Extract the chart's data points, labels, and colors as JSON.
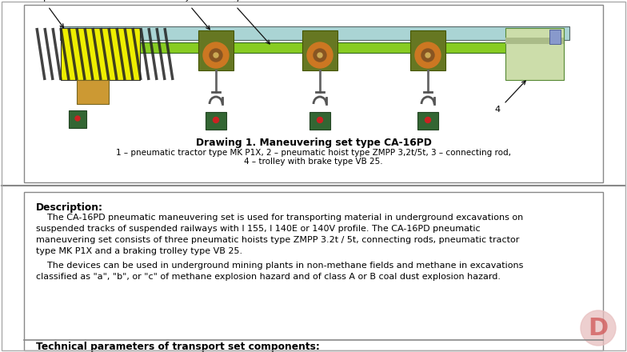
{
  "background_color": "#ffffff",
  "border_color": "#888888",
  "divider_color": "#888888",
  "drawing_title": "Drawing 1. Maneuvering set type CA-16PD",
  "drawing_caption_line1": "1 – pneumatic tractor type MK P1X, 2 – pneumatic hoist type ZMPP 3,2t/5t, 3 – connecting rod,",
  "drawing_caption_line2": "4 – trolley with brake type VB 25.",
  "description_heading": "Description:",
  "desc_para1_lines": [
    "    The CA-16PD pneumatic maneuvering set is used for transporting material in underground excavations on",
    "suspended tracks of suspended railways with I 155, I 140E or 140V profile. The CA-16PD pneumatic",
    "maneuvering set consists of three pneumatic hoists type ZMPP 3.2t / 5t, connecting rods, pneumatic tractor",
    "type MK P1X and a braking trolley type VB 25."
  ],
  "desc_para2_lines": [
    "    The devices can be used in underground mining plants in non-methane fields and methane in excavations",
    "classified as \"a\", \"b\", or \"c\" of methane explosion hazard and of class A or B coal dust explosion hazard."
  ],
  "tech_heading": "Technical parameters of transport set components:",
  "watermark_text": "D",
  "watermark_color": "#e8c0c0",
  "watermark_text_color": "#cc4444",
  "fig_width": 7.84,
  "fig_height": 4.4,
  "dpi": 100,
  "rail_color": "#aad4d4",
  "rail_border_color": "#556666",
  "beam_color": "#88cc22",
  "beam_border_color": "#336622",
  "tractor_yellow": "#eeee00",
  "tractor_black": "#222222",
  "tractor_grey": "#aaaaaa",
  "hoist_green": "#667722",
  "hoist_orange": "#cc7722",
  "hoist_brown": "#885533",
  "remote_green": "#336633",
  "remote_dark": "#224422",
  "hook_color": "#555555",
  "brake_body": "#ccdd99",
  "brake_border": "#558833",
  "orange_box": "#cc9933",
  "arrow_color": "#111111"
}
